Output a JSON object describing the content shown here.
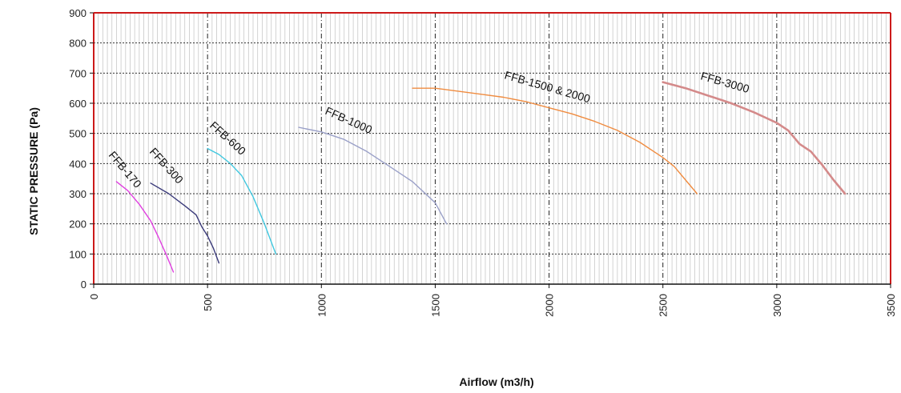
{
  "chart_data": {
    "type": "line",
    "title": "",
    "xlabel": "Airflow (m3/h)",
    "ylabel": "STATIC PRESSURE (Pa)",
    "xlim": [
      0,
      3500
    ],
    "ylim": [
      0,
      900
    ],
    "x_ticks": [
      "0",
      "500",
      "1000",
      "1500",
      "2000",
      "2500",
      "3000",
      "3500"
    ],
    "y_ticks": [
      "0",
      "100",
      "200",
      "300",
      "400",
      "500",
      "600",
      "700",
      "800",
      "900"
    ],
    "grid": true,
    "legend": "none",
    "series": [
      {
        "name": "FFB-170",
        "color": "#e040e0",
        "x": [
          100,
          150,
          200,
          250,
          285,
          320,
          350
        ],
        "y": [
          340,
          310,
          265,
          210,
          155,
          95,
          40
        ]
      },
      {
        "name": "FFB-300",
        "color": "#3a3a7a",
        "x": [
          250,
          330,
          400,
          450,
          475,
          500,
          525,
          550
        ],
        "y": [
          335,
          300,
          260,
          230,
          190,
          160,
          120,
          70
        ]
      },
      {
        "name": "FFB-600",
        "color": "#40c8e0",
        "x": [
          500,
          550,
          600,
          650,
          700,
          750,
          780,
          800
        ],
        "y": [
          450,
          430,
          400,
          360,
          290,
          200,
          140,
          100
        ]
      },
      {
        "name": "FFB-1000",
        "color": "#9aa0c8",
        "x": [
          900,
          1000,
          1100,
          1200,
          1300,
          1400,
          1450,
          1500,
          1550
        ],
        "y": [
          520,
          505,
          480,
          440,
          390,
          340,
          305,
          270,
          200
        ]
      },
      {
        "name": "FFB-1500 & 2000",
        "color": "#f08c40",
        "x": [
          1400,
          1500,
          1600,
          1700,
          1800,
          1900,
          2000,
          2100,
          2200,
          2300,
          2400,
          2500,
          2550,
          2600,
          2650
        ],
        "y": [
          650,
          650,
          640,
          630,
          620,
          605,
          585,
          565,
          540,
          510,
          470,
          420,
          390,
          345,
          300
        ]
      },
      {
        "name": "FFB-3000",
        "color": "#d48a8a",
        "x": [
          2500,
          2600,
          2700,
          2800,
          2900,
          3000,
          3050,
          3100,
          3150,
          3200,
          3250,
          3300
        ],
        "y": [
          670,
          650,
          625,
          600,
          570,
          535,
          510,
          465,
          440,
          395,
          345,
          300
        ]
      }
    ]
  }
}
